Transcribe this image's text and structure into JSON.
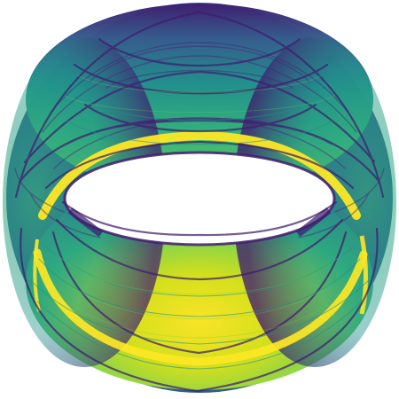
{
  "image": {
    "subject": "torus-attractor-render",
    "background": "#ffffff",
    "palette": {
      "dark": "#3f1d6f",
      "deep": "#482677",
      "mid_dark": "#2f5d8c",
      "mid": "#1f8f8a",
      "mid_light": "#35b779",
      "light": "#b5de2b",
      "bright": "#fde725"
    }
  }
}
